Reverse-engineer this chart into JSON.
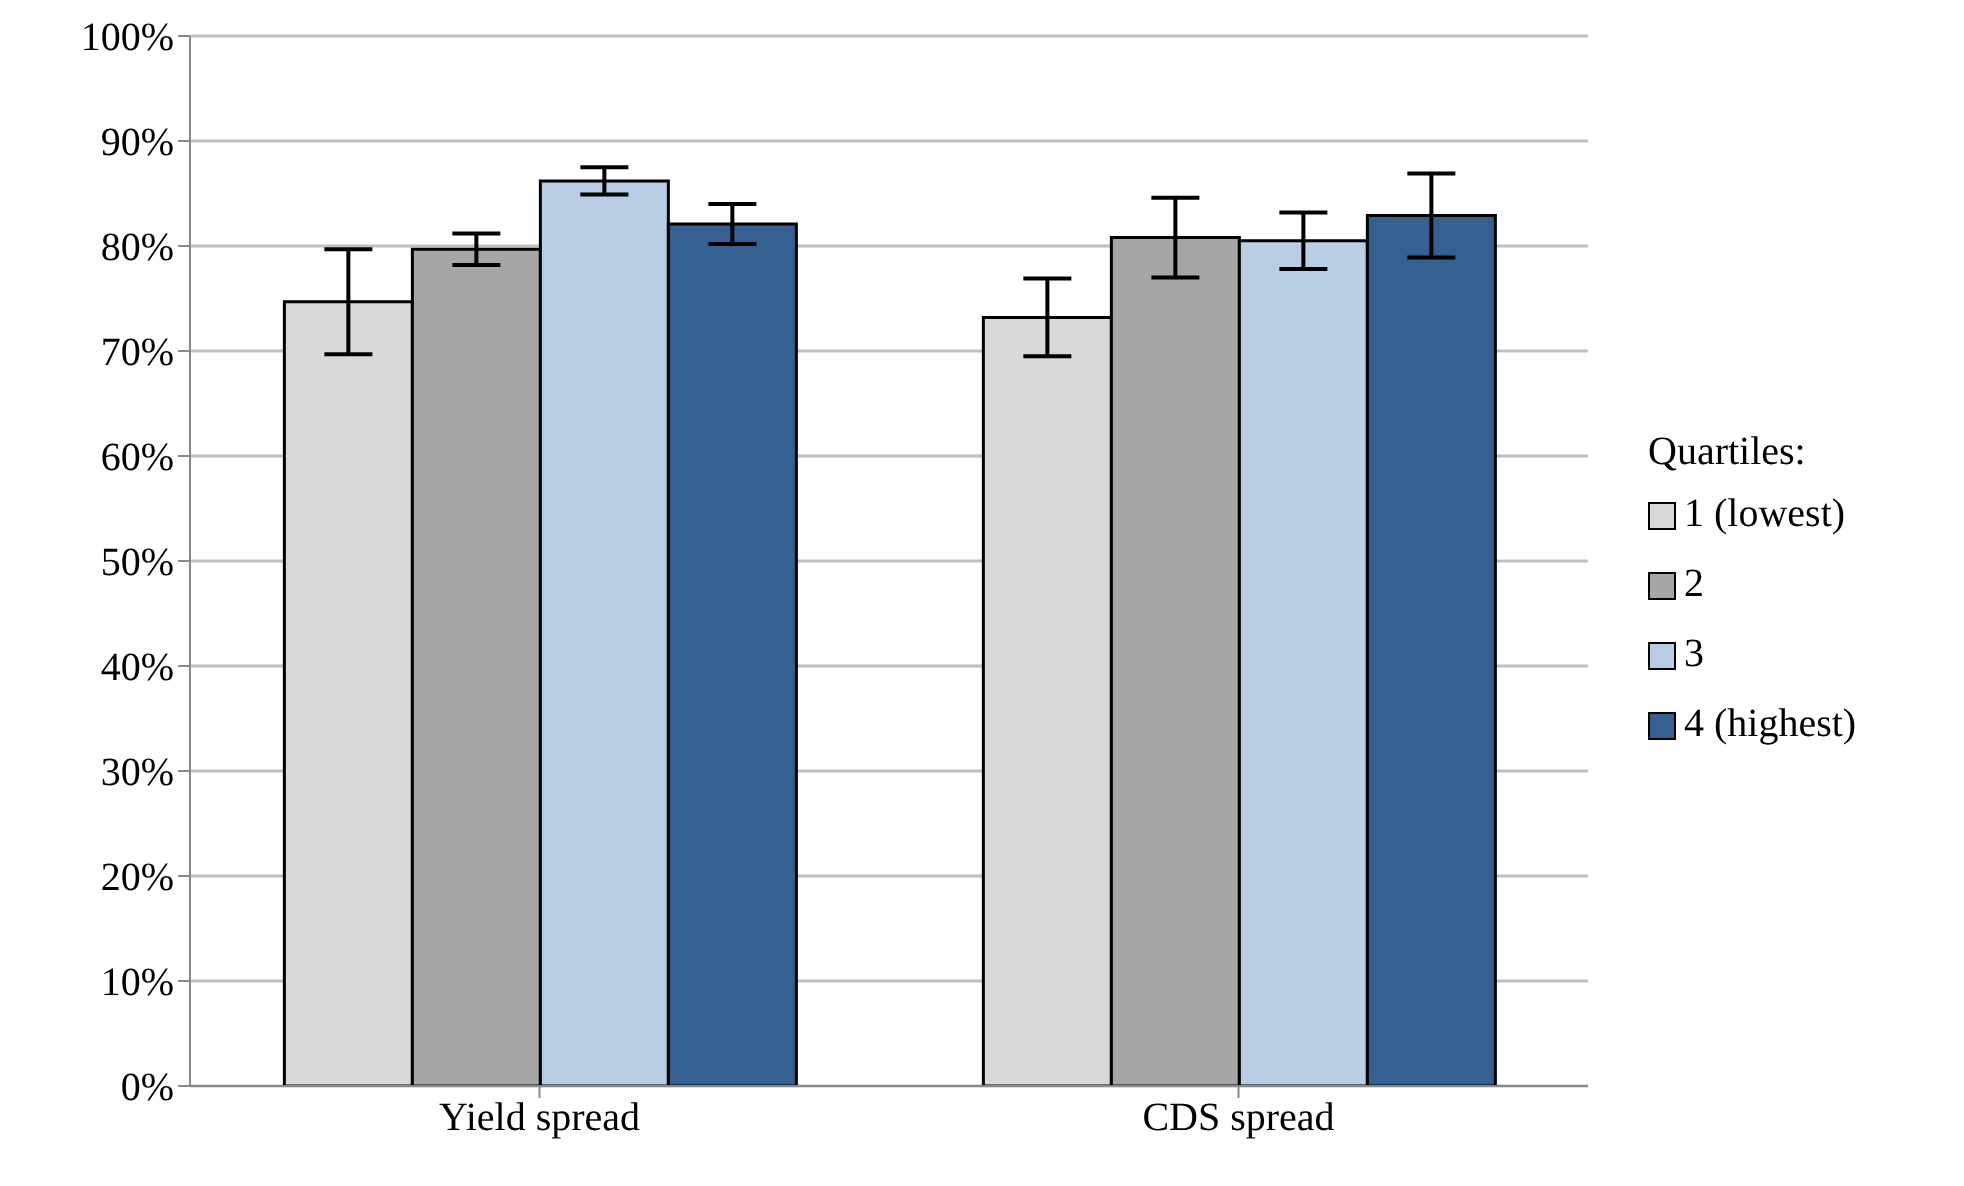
{
  "chart_data": {
    "type": "bar",
    "categories": [
      "Yield spread",
      "CDS spread"
    ],
    "series": [
      {
        "name": "1 (lowest)",
        "color": "#d9d9d9",
        "values": [
          74.7,
          73.2
        ],
        "errors": [
          5.0,
          3.7
        ]
      },
      {
        "name": "2",
        "color": "#a6a6a6",
        "values": [
          79.7,
          80.8
        ],
        "errors": [
          1.5,
          3.8
        ]
      },
      {
        "name": "3",
        "color": "#b9cde5",
        "values": [
          86.2,
          80.5
        ],
        "errors": [
          1.3,
          2.7
        ]
      },
      {
        "name": "4 (highest)",
        "color": "#376092",
        "values": [
          82.1,
          82.9
        ],
        "errors": [
          1.9,
          4.0
        ]
      }
    ],
    "legend_title": "Quartiles:",
    "legend": "right",
    "ylim": [
      0,
      100
    ],
    "yticks": [
      {
        "value": 0,
        "label": "0%"
      },
      {
        "value": 10,
        "label": "10%"
      },
      {
        "value": 20,
        "label": "20%"
      },
      {
        "value": 30,
        "label": "30%"
      },
      {
        "value": 40,
        "label": "40%"
      },
      {
        "value": 50,
        "label": "50%"
      },
      {
        "value": 60,
        "label": "60%"
      },
      {
        "value": 70,
        "label": "70%"
      },
      {
        "value": 80,
        "label": "80%"
      },
      {
        "value": 90,
        "label": "90%"
      },
      {
        "value": 100,
        "label": "100%"
      }
    ],
    "grid": "y"
  }
}
